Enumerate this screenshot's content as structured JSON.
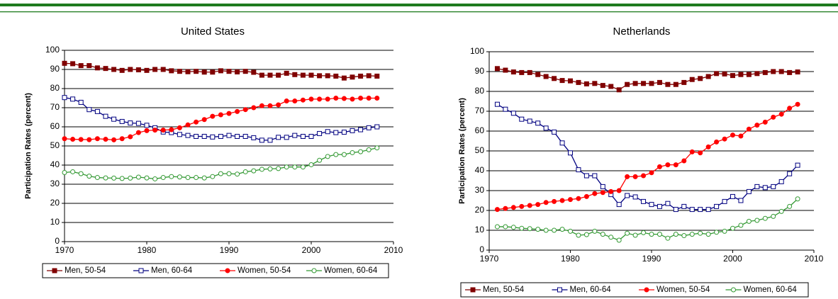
{
  "chart_data": [
    {
      "type": "line",
      "title": "United States",
      "y_label": "Participation Rates (percent)",
      "x": [
        1970,
        1971,
        1972,
        1973,
        1974,
        1975,
        1976,
        1977,
        1978,
        1979,
        1980,
        1981,
        1982,
        1983,
        1984,
        1985,
        1986,
        1987,
        1988,
        1989,
        1990,
        1991,
        1992,
        1993,
        1994,
        1995,
        1996,
        1997,
        1998,
        1999,
        2000,
        2001,
        2002,
        2003,
        2004,
        2005,
        2006,
        2007,
        2008
      ],
      "xlim": [
        1970,
        2010
      ],
      "xticks": [
        1970,
        1980,
        1990,
        2000,
        2010
      ],
      "ylim": [
        0,
        100
      ],
      "yticks": [
        0,
        10,
        20,
        30,
        40,
        50,
        60,
        70,
        80,
        90,
        100
      ],
      "grid": true,
      "legend": "bottom",
      "series": [
        {
          "name": "Men, 50-54",
          "color": "#800000",
          "marker": "square",
          "filled": true,
          "values": [
            93.2,
            93,
            92,
            92,
            90.8,
            90.5,
            90,
            89.5,
            90,
            89.8,
            89.5,
            90,
            90,
            89.3,
            89,
            88.8,
            89,
            88.6,
            88.6,
            89.3,
            89,
            88.7,
            89,
            88.5,
            87,
            87,
            87,
            88,
            87.3,
            87,
            87,
            86.7,
            86.7,
            86.5,
            85.5,
            86,
            86.5,
            86.7,
            86.5
          ]
        },
        {
          "name": "Men, 60-64",
          "color": "#000080",
          "marker": "square",
          "filled": false,
          "values": [
            75.3,
            74.5,
            72.8,
            69,
            68,
            65.5,
            64,
            62.8,
            62,
            61.8,
            60.8,
            59.5,
            57.3,
            57,
            56,
            55.5,
            55,
            55,
            54.7,
            55,
            55.5,
            55,
            55,
            54.3,
            53,
            53,
            54.5,
            54.5,
            55.5,
            55,
            55,
            56.5,
            57.5,
            57,
            57.2,
            58,
            58.5,
            59.5,
            60
          ]
        },
        {
          "name": "Women, 50-54",
          "color": "#ff0000",
          "marker": "circle",
          "filled": true,
          "values": [
            53.8,
            53.5,
            53.4,
            53.3,
            53.8,
            53.5,
            53.2,
            53.8,
            54.8,
            57,
            58,
            58.3,
            58.3,
            58.5,
            59.5,
            61,
            62.5,
            63.8,
            65.5,
            66.3,
            67,
            68,
            69,
            70,
            71,
            71,
            71.5,
            73.5,
            73.5,
            74,
            74.5,
            74.5,
            74.5,
            75,
            74.8,
            74.5,
            75,
            75,
            75
          ]
        },
        {
          "name": "Women, 60-64",
          "color": "#339933",
          "marker": "circle",
          "filled": false,
          "values": [
            36.1,
            36.5,
            35.5,
            34.2,
            33.5,
            33.3,
            33.2,
            33,
            33.2,
            33.7,
            33.3,
            32.8,
            33.5,
            34,
            33.8,
            33.5,
            33.5,
            33.3,
            34,
            35.5,
            35.5,
            35.3,
            36.5,
            37,
            37.8,
            38,
            38.2,
            39,
            39,
            39,
            40.2,
            42.5,
            44.5,
            45.5,
            45.5,
            46.5,
            47,
            48,
            49
          ]
        }
      ]
    },
    {
      "type": "line",
      "title": "Netherlands",
      "y_label": "Participation Rates (percent)",
      "x": [
        1971,
        1972,
        1973,
        1974,
        1975,
        1976,
        1977,
        1978,
        1979,
        1980,
        1981,
        1982,
        1983,
        1984,
        1985,
        1986,
        1987,
        1988,
        1989,
        1990,
        1991,
        1992,
        1993,
        1994,
        1995,
        1996,
        1997,
        1998,
        1999,
        2000,
        2001,
        2002,
        2003,
        2004,
        2005,
        2006,
        2007,
        2008
      ],
      "xlim": [
        1970,
        2010
      ],
      "xticks": [
        1970,
        1980,
        1990,
        2000,
        2010
      ],
      "ylim": [
        0,
        100
      ],
      "yticks": [
        0,
        10,
        20,
        30,
        40,
        50,
        60,
        70,
        80,
        90,
        100
      ],
      "grid": true,
      "legend": "bottom",
      "series": [
        {
          "name": "Men, 50-54",
          "color": "#800000",
          "marker": "square",
          "filled": true,
          "values": [
            91.5,
            90.7,
            89.8,
            89.5,
            89.5,
            88.5,
            87.5,
            86.5,
            85.5,
            85.3,
            84.5,
            83.8,
            84,
            83,
            82.5,
            80.8,
            83.5,
            84,
            84,
            84,
            84.5,
            83.5,
            83.5,
            84.5,
            86,
            86.5,
            87.5,
            89,
            88.8,
            88,
            88.5,
            88.5,
            89,
            89.5,
            90,
            90,
            89.5,
            89.8
          ]
        },
        {
          "name": "Men, 60-64",
          "color": "#000080",
          "marker": "square",
          "filled": false,
          "values": [
            73.5,
            71,
            69,
            66,
            65,
            64,
            61.5,
            59.5,
            54,
            49,
            40.5,
            37.5,
            37.5,
            32,
            28,
            23,
            27.5,
            26.8,
            24.5,
            23,
            22,
            23.5,
            20.5,
            22,
            20.5,
            20.5,
            20.5,
            22,
            24.5,
            27,
            25,
            29.5,
            32,
            31.5,
            32,
            34.5,
            38.5,
            42.8
          ]
        },
        {
          "name": "Women, 50-54",
          "color": "#ff0000",
          "marker": "circle",
          "filled": true,
          "values": [
            20.5,
            21,
            21.5,
            22,
            22.5,
            23,
            24,
            24.5,
            25,
            25.5,
            26,
            27,
            28.5,
            29,
            29.5,
            30,
            37,
            37,
            37.5,
            39,
            42,
            43,
            43,
            45,
            49.5,
            49,
            52,
            54.5,
            56,
            58,
            57.5,
            61,
            63,
            64.5,
            67,
            68.5,
            71.5,
            73.5
          ]
        },
        {
          "name": "Women, 60-64",
          "color": "#339933",
          "marker": "circle",
          "filled": false,
          "values": [
            11.8,
            11.8,
            11.5,
            11,
            10.8,
            10.5,
            10,
            10,
            10.5,
            9.5,
            7.5,
            7.8,
            9.5,
            8,
            6.5,
            5,
            8.5,
            7.5,
            8.8,
            8,
            8,
            6,
            8,
            7.3,
            8,
            8.5,
            8,
            9,
            9.5,
            11,
            12.5,
            14.5,
            15,
            16,
            17,
            19.5,
            22,
            25.8
          ]
        }
      ]
    }
  ]
}
